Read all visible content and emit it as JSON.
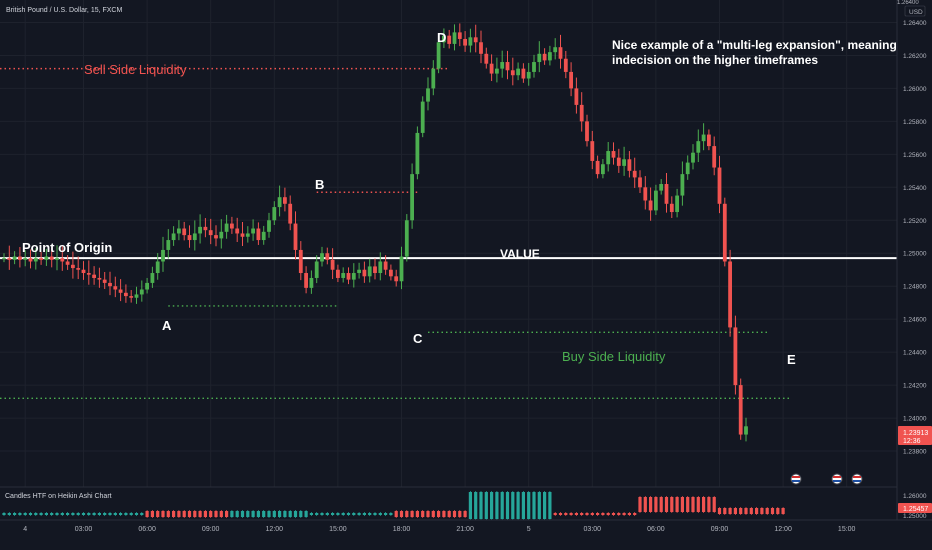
{
  "header": {
    "symbol_title": "British Pound / U.S. Dollar, 15, FXCM",
    "currency": "USD"
  },
  "price_axis": {
    "ticks": [
      "1.26400",
      "1.26200",
      "1.26000",
      "1.25800",
      "1.25600",
      "1.25400",
      "1.25200",
      "1.25000",
      "1.24800",
      "1.24600",
      "1.24400",
      "1.24200",
      "1.24000",
      "1.23800"
    ],
    "top_tick": "1.26400",
    "last_price": "1.23913",
    "countdown": "12:36"
  },
  "indicator_axis": {
    "ticks": [
      "1.26000",
      "1.25000"
    ],
    "last_value": "1.25457"
  },
  "time_axis": {
    "labels": [
      {
        "t": 4,
        "text": "4"
      },
      {
        "t": 15,
        "text": "03:00"
      },
      {
        "t": 27,
        "text": "06:00"
      },
      {
        "t": 39,
        "text": "09:00"
      },
      {
        "t": 51,
        "text": "12:00"
      },
      {
        "t": 63,
        "text": "15:00"
      },
      {
        "t": 75,
        "text": "18:00"
      },
      {
        "t": 87,
        "text": "21:00"
      },
      {
        "t": 99,
        "text": "5"
      },
      {
        "t": 111,
        "text": "03:00"
      },
      {
        "t": 123,
        "text": "06:00"
      },
      {
        "t": 135,
        "text": "09:00"
      },
      {
        "t": 147,
        "text": "12:00"
      },
      {
        "t": 159,
        "text": "15:00"
      }
    ]
  },
  "indicator": {
    "name": "Candles HTF on Heikin Ashi Chart"
  },
  "annotations": {
    "point_of_origin": "Point of Origin",
    "value": "VALUE",
    "sell_side": "Sell Side Liquidity",
    "buy_side": "Buy Side Liquidity",
    "note_line1": "Nice example of a \"multi-leg expansion\", meaning",
    "note_line2": "indecision on the higher timeframes",
    "label_a": "A",
    "label_b": "B",
    "label_c": "C",
    "label_d": "D",
    "label_e": "E"
  },
  "colors": {
    "background": "#131722",
    "up": "#4caf50",
    "down": "#f05350",
    "teal": "#26a69a",
    "white": "#ffffff",
    "axis_text": "#b2b5be",
    "grid": "#1e222d"
  },
  "chart_data": {
    "type": "candlestick",
    "x_unit": "15-minute bar index (time axis labels at 3-hour intervals)",
    "y_unit": "GBP/USD price",
    "ylim": [
      1.236,
      1.265
    ],
    "levels": {
      "value_line": 1.2497,
      "sell_side_liquidity": 1.2612,
      "buy_side_liquidity": 1.2412,
      "b_level": 1.2537,
      "a_level": 1.2468,
      "c_level": 1.2452
    },
    "series": [
      {
        "name": "price",
        "closes": [
          1.2497,
          1.2496,
          1.2498,
          1.2496,
          1.2497,
          1.2495,
          1.2497,
          1.2496,
          1.2498,
          1.2496,
          1.2497,
          1.2495,
          1.2493,
          1.2491,
          1.249,
          1.2488,
          1.2487,
          1.2485,
          1.2484,
          1.2482,
          1.248,
          1.2478,
          1.2476,
          1.2474,
          1.2473,
          1.2475,
          1.2478,
          1.2482,
          1.2488,
          1.2495,
          1.2502,
          1.2508,
          1.2512,
          1.2515,
          1.2511,
          1.2508,
          1.2512,
          1.2516,
          1.2514,
          1.2511,
          1.2509,
          1.2513,
          1.2518,
          1.2515,
          1.2512,
          1.251,
          1.2512,
          1.2515,
          1.2508,
          1.2513,
          1.252,
          1.2528,
          1.2534,
          1.253,
          1.2518,
          1.2502,
          1.2488,
          1.2479,
          1.2485,
          1.2495,
          1.25,
          1.2496,
          1.249,
          1.2485,
          1.2488,
          1.2484,
          1.2488,
          1.249,
          1.2486,
          1.2492,
          1.2488,
          1.2495,
          1.249,
          1.2486,
          1.2483,
          1.2498,
          1.252,
          1.2548,
          1.2573,
          1.2592,
          1.26,
          1.2612,
          1.2628,
          1.2632,
          1.2627,
          1.2634,
          1.263,
          1.2626,
          1.2631,
          1.2628,
          1.2621,
          1.2615,
          1.2609,
          1.2612,
          1.2616,
          1.2611,
          1.2608,
          1.2612,
          1.2606,
          1.261,
          1.2616,
          1.2621,
          1.2617,
          1.2622,
          1.2625,
          1.2618,
          1.261,
          1.26,
          1.259,
          1.258,
          1.2568,
          1.2556,
          1.2548,
          1.2554,
          1.2562,
          1.2558,
          1.2553,
          1.2557,
          1.255,
          1.2546,
          1.254,
          1.2532,
          1.2526,
          1.2538,
          1.2542,
          1.253,
          1.2525,
          1.2535,
          1.2548,
          1.2555,
          1.2561,
          1.2568,
          1.2572,
          1.2565,
          1.2552,
          1.253,
          1.2495,
          1.2455,
          1.242,
          1.239,
          1.2395
        ]
      }
    ],
    "points": [
      {
        "label": "A",
        "t": 27,
        "price": 1.2473
      },
      {
        "label": "B",
        "t": 52,
        "price": 1.2534
      },
      {
        "label": "C",
        "t": 69,
        "price": 1.2452
      },
      {
        "label": "D",
        "t": 85,
        "price": 1.2634
      },
      {
        "label": "E",
        "t": 138,
        "price": 1.239
      }
    ]
  }
}
